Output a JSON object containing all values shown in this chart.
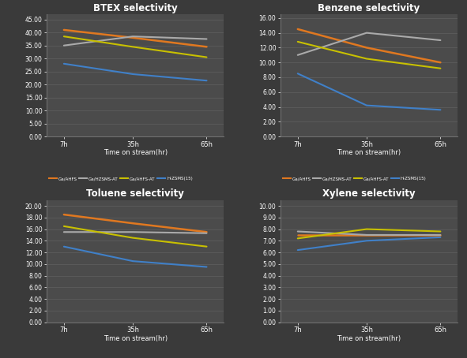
{
  "background_color": "#3a3a3a",
  "plot_bg_color": "#4b4b4b",
  "x_ticks": [
    7,
    35,
    65
  ],
  "x_tick_labels": [
    "7h",
    "35h",
    "65h"
  ],
  "xlabel": "Time on stream(hr)",
  "series": {
    "Ga/AHFS": {
      "color": "#e07820",
      "linewidth": 1.8
    },
    "Ga/HZSMS-AT": {
      "color": "#aaaaaa",
      "linewidth": 1.5
    },
    "Ga/AHFS-AT": {
      "color": "#c8c000",
      "linewidth": 1.5
    },
    "H-ZSMS(15)": {
      "color": "#4080c8",
      "linewidth": 1.5
    }
  },
  "subplots": [
    {
      "title": "BTEX selectivity",
      "ylim": [
        0,
        47
      ],
      "yticks": [
        0,
        5,
        10,
        15,
        20,
        25,
        30,
        35,
        40,
        45
      ],
      "ytick_labels": [
        "0.00",
        "5.00",
        "10.00",
        "15.00",
        "20.00",
        "25.00",
        "30.00",
        "35.00",
        "40.00",
        "45.00"
      ],
      "data": {
        "Ga/AHFS": [
          41.0,
          38.0,
          34.5
        ],
        "Ga/HZSMS-AT": [
          35.0,
          38.5,
          37.5
        ],
        "Ga/AHFS-AT": [
          38.5,
          34.5,
          30.5
        ],
        "H-ZSMS(15)": [
          28.0,
          24.0,
          21.5
        ]
      }
    },
    {
      "title": "Benzene selectivity",
      "ylim": [
        0,
        16.5
      ],
      "yticks": [
        0,
        2,
        4,
        6,
        8,
        10,
        12,
        14,
        16
      ],
      "ytick_labels": [
        "0.00",
        "2.00",
        "4.00",
        "6.00",
        "8.00",
        "10.00",
        "12.00",
        "14.00",
        "16.00"
      ],
      "data": {
        "Ga/AHFS": [
          14.5,
          12.0,
          10.0
        ],
        "Ga/HZSMS-AT": [
          11.0,
          14.0,
          13.0
        ],
        "Ga/AHFS-AT": [
          12.8,
          10.5,
          9.2
        ],
        "H-ZSMS(15)": [
          8.5,
          4.2,
          3.6
        ]
      }
    },
    {
      "title": "Toluene selectivity",
      "ylim": [
        0,
        21
      ],
      "yticks": [
        0,
        2,
        4,
        6,
        8,
        10,
        12,
        14,
        16,
        18,
        20
      ],
      "ytick_labels": [
        "0.00",
        "2.00",
        "4.00",
        "6.00",
        "8.00",
        "10.00",
        "12.00",
        "14.00",
        "16.00",
        "18.00",
        "20.00"
      ],
      "data": {
        "Ga/AHFS": [
          18.5,
          17.0,
          15.5
        ],
        "Ga/HZSMS-AT": [
          15.5,
          15.5,
          15.3
        ],
        "Ga/AHFS-AT": [
          16.5,
          14.5,
          13.0
        ],
        "H-ZSMS(15)": [
          13.0,
          10.5,
          9.5
        ]
      }
    },
    {
      "title": "Xylene selectivity",
      "ylim": [
        0,
        10.5
      ],
      "yticks": [
        0,
        1,
        2,
        3,
        4,
        5,
        6,
        7,
        8,
        9,
        10
      ],
      "ytick_labels": [
        "0.00",
        "1.00",
        "2.00",
        "3.00",
        "4.00",
        "5.00",
        "6.00",
        "7.00",
        "8.00",
        "9.00",
        "10.00"
      ],
      "data": {
        "Ga/AHFS": [
          7.5,
          7.5,
          7.5
        ],
        "Ga/HZSMS-AT": [
          7.8,
          7.5,
          7.5
        ],
        "Ga/AHFS-AT": [
          7.2,
          8.0,
          7.8
        ],
        "H-ZSMS(15)": [
          6.2,
          7.0,
          7.3
        ]
      }
    }
  ]
}
